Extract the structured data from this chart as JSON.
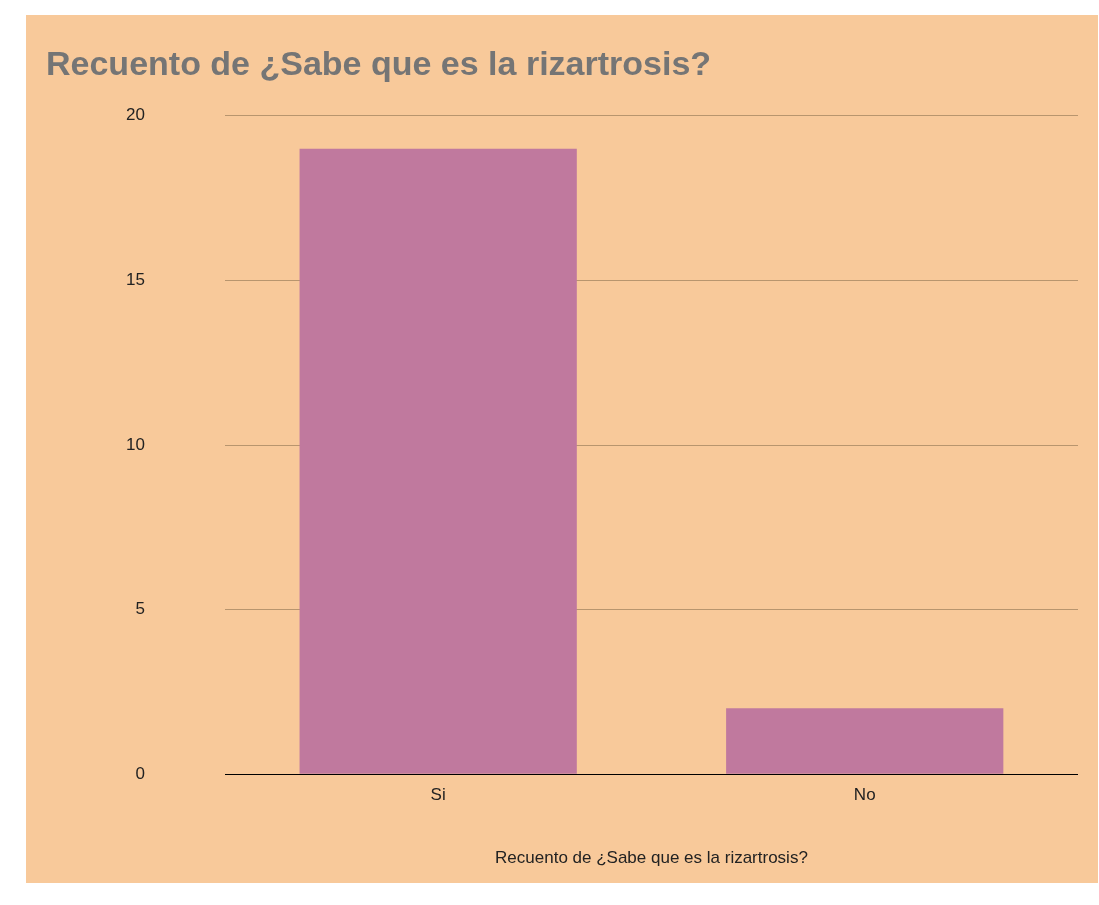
{
  "chart_data": {
    "type": "bar",
    "title": "Recuento de ¿Sabe que es la rizartrosis?",
    "xlabel": "Recuento de ¿Sabe que es la rizartrosis?",
    "categories": [
      "Si",
      "No"
    ],
    "values": [
      19,
      2
    ],
    "color": "#c0799e",
    "ylim": [
      0,
      20
    ],
    "yticks": [
      0,
      5,
      10,
      15,
      20
    ],
    "grid": "y",
    "legend": false
  }
}
